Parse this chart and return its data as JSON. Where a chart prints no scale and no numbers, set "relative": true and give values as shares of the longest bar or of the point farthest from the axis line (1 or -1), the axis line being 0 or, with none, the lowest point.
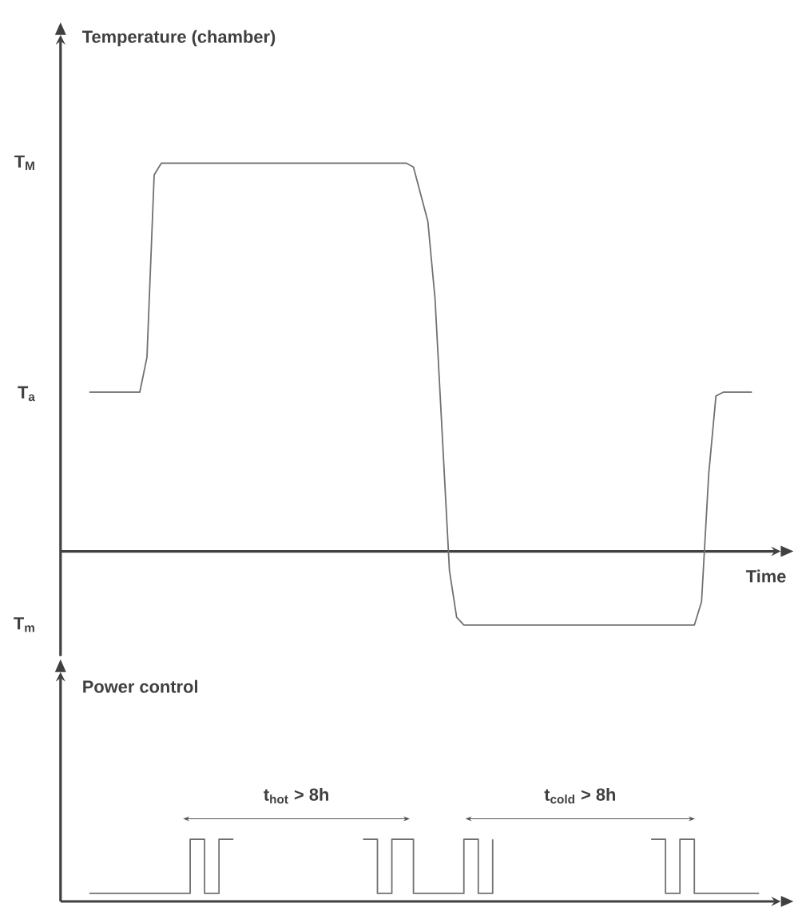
{
  "chart_data": [
    {
      "type": "line",
      "relative": true,
      "ylabel": "Temperature (chamber)",
      "xlabel": "Time",
      "categories": [
        null,
        null,
        null,
        null,
        null,
        null,
        null,
        null,
        null,
        null,
        null,
        null,
        null,
        null,
        null,
        null,
        null,
        null,
        null,
        null,
        null,
        null,
        null,
        null,
        null,
        null,
        null,
        null,
        null,
        null,
        null,
        null,
        null,
        null,
        null,
        null,
        null,
        null,
        null,
        null,
        null,
        null,
        null,
        null,
        null,
        null,
        null,
        null,
        null,
        null,
        null,
        null,
        null,
        null,
        null,
        null,
        null,
        null,
        null,
        null,
        null,
        null,
        null,
        null,
        null,
        null,
        null,
        null,
        null,
        null,
        null,
        null,
        null,
        null,
        null,
        null,
        null,
        null,
        null,
        null,
        null,
        null,
        null,
        null,
        null,
        null,
        null,
        null,
        null,
        null,
        null,
        null,
        null,
        null,
        null,
        null,
        null,
        null,
        null,
        null
      ],
      "series": [
        {
          "color": "#707070",
          "values": [
            null,
            null,
            null,
            null,
            0.41,
            0.41,
            0.41,
            0.41,
            0.41,
            0.41,
            0.41,
            0.41,
            0.5,
            0.97,
            1,
            1,
            1,
            1,
            1,
            1,
            1,
            1,
            1,
            1,
            1,
            1,
            1,
            1,
            1,
            1,
            1,
            1,
            1,
            1,
            1,
            1,
            1,
            1,
            1,
            1,
            1,
            1,
            1,
            1,
            1,
            1,
            1,
            1,
            1,
            0.99,
            0.92,
            0.85,
            0.65,
            0.3,
            -0.05,
            -0.17,
            -0.19,
            -0.19,
            -0.19,
            -0.19,
            -0.19,
            -0.19,
            -0.19,
            -0.19,
            -0.19,
            -0.19,
            -0.19,
            -0.19,
            -0.19,
            -0.19,
            -0.19,
            -0.19,
            -0.19,
            -0.19,
            -0.19,
            -0.19,
            -0.19,
            -0.19,
            -0.19,
            -0.19,
            -0.19,
            -0.19,
            -0.19,
            -0.19,
            -0.19,
            -0.19,
            -0.19,
            -0.19,
            -0.19,
            -0.13,
            0.2,
            0.4,
            0.41,
            0.41,
            0.41,
            0.41,
            0.41,
            null,
            null,
            null
          ]
        }
      ],
      "annotations": [
        "T$_{M}$",
        "T$_{a}$",
        "T$_{m}$"
      ]
    },
    {
      "type": "step",
      "relative": true,
      "ylabel": "Power control",
      "categories": [
        null,
        null,
        null,
        null,
        null,
        null,
        null,
        null,
        null,
        null,
        null,
        null,
        null,
        null,
        null,
        null,
        null,
        null,
        null,
        null,
        null,
        null,
        null,
        null,
        null,
        null,
        null,
        null,
        null,
        null,
        null,
        null,
        null,
        null,
        null,
        null,
        null,
        null,
        null,
        null,
        null,
        null,
        null,
        null,
        null,
        null,
        null,
        null,
        null,
        null,
        null,
        null,
        null,
        null,
        null,
        null,
        null,
        null,
        null,
        null,
        null,
        null,
        null,
        null,
        null,
        null,
        null,
        null,
        null,
        null,
        null,
        null,
        null,
        null,
        null,
        null,
        null,
        null,
        null,
        null,
        null,
        null,
        null,
        null,
        null,
        null,
        null,
        null,
        null,
        null,
        null,
        null,
        null,
        null,
        null,
        null,
        null,
        null,
        null,
        null
      ],
      "series": [
        {
          "color": "#707070",
          "values": [
            null,
            null,
            null,
            null,
            0.13,
            0.13,
            0.13,
            0.13,
            0.13,
            0.13,
            0.13,
            0.13,
            0.13,
            0.13,
            0.13,
            0.13,
            0.13,
            0.13,
            1,
            1,
            0.13,
            0.13,
            1,
            1,
            1,
            null,
            null,
            null,
            null,
            null,
            null,
            null,
            null,
            null,
            null,
            null,
            null,
            null,
            null,
            null,
            null,
            null,
            1,
            1,
            0.13,
            0.13,
            1,
            1,
            1,
            0.13,
            0.13,
            0.13,
            0.13,
            0.13,
            0.13,
            0.13,
            1,
            1,
            0.13,
            0.13,
            1,
            null,
            null,
            null,
            null,
            null,
            null,
            null,
            null,
            null,
            null,
            null,
            null,
            null,
            null,
            null,
            null,
            null,
            null,
            null,
            null,
            null,
            1,
            1,
            0.13,
            0.13,
            1,
            1,
            0.13,
            0.13,
            0.13,
            0.13,
            0.13,
            0.13,
            0.13,
            0.13,
            0.13,
            0.13,
            null,
            null
          ]
        }
      ],
      "annotations": [
        "t$_{hot}$ > 8h",
        "t$_{cold}$ > 8h"
      ]
    }
  ]
}
